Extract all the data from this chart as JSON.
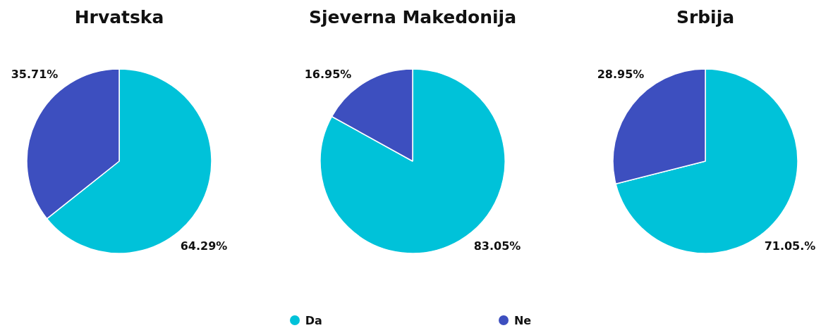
{
  "chart_data": [
    {
      "type": "pie",
      "title": "Hrvatska",
      "categories": [
        "Da",
        "Ne"
      ],
      "values": [
        64.29,
        35.71
      ],
      "colors": [
        "#00c2d9",
        "#3d4fbf"
      ],
      "value_labels": [
        "64.29%",
        "35.71%"
      ],
      "legend": "bottom"
    },
    {
      "type": "pie",
      "title": "Sjeverna Makedonija",
      "categories": [
        null,
        null
      ],
      "values": [
        83.05,
        16.95
      ],
      "colors": [
        "#00c2d9",
        "#3d4fbf"
      ],
      "value_labels": [
        "83.05%",
        "16.95%"
      ]
    },
    {
      "type": "pie",
      "title": "Srbija",
      "categories": [
        null,
        null
      ],
      "values": [
        71.05,
        28.95
      ],
      "colors": [
        "#00c2d9",
        "#3d4fbf"
      ],
      "value_labels": [
        "71.05.%",
        "28.95%"
      ]
    }
  ]
}
